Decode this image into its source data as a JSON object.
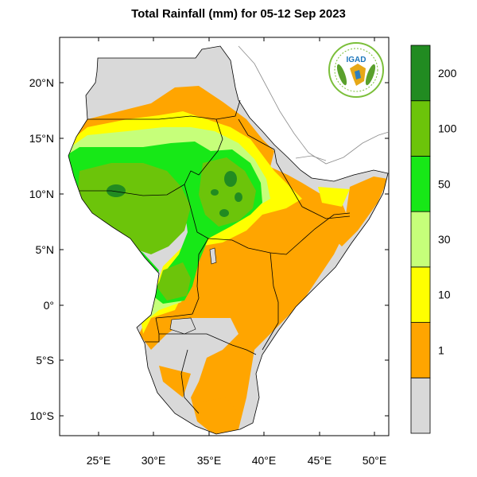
{
  "title": "Total Rainfall (mm) for 05-12 Sep 2023",
  "logo_text": "IGAD",
  "map": {
    "lat_ticks": [
      "20°N",
      "15°N",
      "10°N",
      "5°N",
      "0°",
      "5°S",
      "10°S"
    ],
    "lon_ticks": [
      "25°E",
      "30°E",
      "35°E",
      "40°E",
      "45°E",
      "50°E"
    ],
    "lat_values": [
      20,
      15,
      10,
      5,
      0,
      -5,
      -10
    ],
    "lon_values": [
      25,
      30,
      35,
      40,
      45,
      50
    ],
    "extent": {
      "lon_min": 21.8,
      "lon_max": 51.5,
      "lat_min": -11.7,
      "lat_max": 23.9
    }
  },
  "legend": {
    "bins": [
      {
        "label": "",
        "color": "#d9d9d9"
      },
      {
        "label": "1",
        "color": "#ffa500"
      },
      {
        "label": "10",
        "color": "#ffff00"
      },
      {
        "label": "30",
        "color": "#c6ff7a"
      },
      {
        "label": "50",
        "color": "#17e817"
      },
      {
        "label": "100",
        "color": "#6cc40a"
      },
      {
        "label": "200",
        "color": "#218b21"
      }
    ],
    "labels": [
      "1",
      "10",
      "30",
      "50",
      "100",
      "200"
    ]
  },
  "colors": {
    "no_rain": "#d9d9d9",
    "r1_10": "#ffa500",
    "r10_30": "#ffff00",
    "r30_50": "#c6ff7a",
    "r50_100": "#17e817",
    "r100_200": "#6cc40a",
    "r200_plus": "#218b21"
  }
}
